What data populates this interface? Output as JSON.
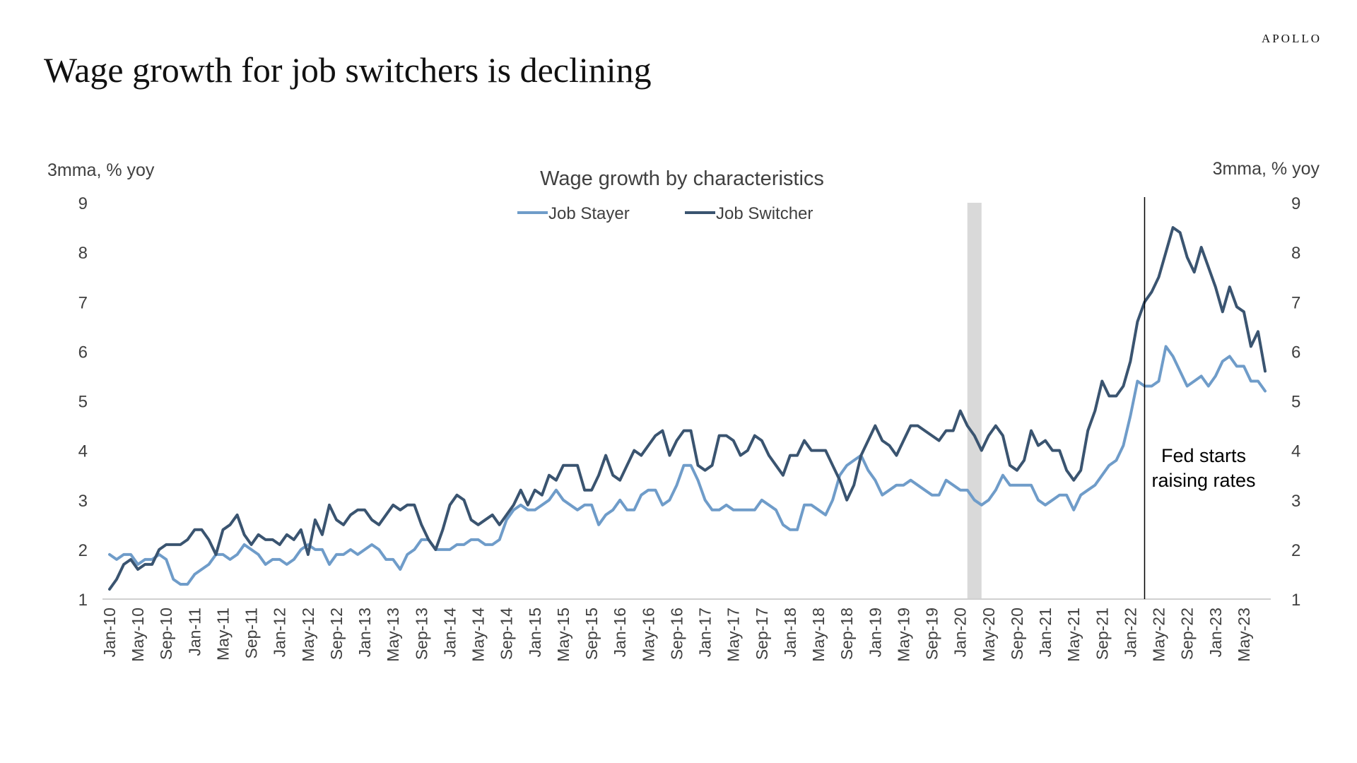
{
  "brand": "APOLLO",
  "page_title": "Wage growth for job switchers is declining",
  "colors": {
    "job_stayer": "#6f9cc9",
    "job_switcher": "#3a5470",
    "recession_band": "#d9d9d9",
    "axis": "#d0d0d0"
  },
  "chart_data": {
    "type": "line",
    "title": "Wage growth by characteristics",
    "y_unit_left": "3mma, % yoy",
    "y_unit_right": "3mma, % yoy",
    "ylim": [
      1,
      9
    ],
    "yticks": [
      "1",
      "2",
      "3",
      "4",
      "5",
      "6",
      "7",
      "8",
      "9"
    ],
    "grid": false,
    "legend_position": "top-center",
    "x_start": "Jan-10",
    "x_tick_labels": [
      "Jan-10",
      "May-10",
      "Sep-10",
      "Jan-11",
      "May-11",
      "Sep-11",
      "Jan-12",
      "May-12",
      "Sep-12",
      "Jan-13",
      "May-13",
      "Sep-13",
      "Jan-14",
      "May-14",
      "Sep-14",
      "Jan-15",
      "May-15",
      "Sep-15",
      "Jan-16",
      "May-16",
      "Sep-16",
      "Jan-17",
      "May-17",
      "Sep-17",
      "Jan-18",
      "May-18",
      "Sep-18",
      "Jan-19",
      "May-19",
      "Sep-19",
      "Jan-20",
      "May-20",
      "Sep-20",
      "Jan-21",
      "May-21",
      "Sep-21",
      "Jan-22",
      "May-22",
      "Sep-22",
      "Jan-23",
      "May-23"
    ],
    "recession_shading": {
      "start": "Feb-20",
      "end": "Apr-20"
    },
    "vertical_marker": {
      "at": "Mar-22",
      "label_lines": [
        "Fed starts",
        "raising rates"
      ]
    },
    "series": [
      {
        "name": "Job Stayer",
        "values": [
          1.9,
          1.8,
          1.9,
          1.9,
          1.7,
          1.8,
          1.8,
          1.9,
          1.8,
          1.4,
          1.3,
          1.3,
          1.5,
          1.6,
          1.7,
          1.9,
          1.9,
          1.8,
          1.9,
          2.1,
          2.0,
          1.9,
          1.7,
          1.8,
          1.8,
          1.7,
          1.8,
          2.0,
          2.1,
          2.0,
          2.0,
          1.7,
          1.9,
          1.9,
          2.0,
          1.9,
          2.0,
          2.1,
          2.0,
          1.8,
          1.8,
          1.6,
          1.9,
          2.0,
          2.2,
          2.2,
          2.0,
          2.0,
          2.0,
          2.1,
          2.1,
          2.2,
          2.2,
          2.1,
          2.1,
          2.2,
          2.6,
          2.8,
          2.9,
          2.8,
          2.8,
          2.9,
          3.0,
          3.2,
          3.0,
          2.9,
          2.8,
          2.9,
          2.9,
          2.5,
          2.7,
          2.8,
          3.0,
          2.8,
          2.8,
          3.1,
          3.2,
          3.2,
          2.9,
          3.0,
          3.3,
          3.7,
          3.7,
          3.4,
          3.0,
          2.8,
          2.8,
          2.9,
          2.8,
          2.8,
          2.8,
          2.8,
          3.0,
          2.9,
          2.8,
          2.5,
          2.4,
          2.4,
          2.9,
          2.9,
          2.8,
          2.7,
          3.0,
          3.5,
          3.7,
          3.8,
          3.9,
          3.6,
          3.4,
          3.1,
          3.2,
          3.3,
          3.3,
          3.4,
          3.3,
          3.2,
          3.1,
          3.1,
          3.4,
          3.3,
          3.2,
          3.2,
          3.0,
          2.9,
          3.0,
          3.2,
          3.5,
          3.3,
          3.3,
          3.3,
          3.3,
          3.0,
          2.9,
          3.0,
          3.1,
          3.1,
          2.8,
          3.1,
          3.2,
          3.3,
          3.5,
          3.7,
          3.8,
          4.1,
          4.7,
          5.4,
          5.3,
          5.3,
          5.4,
          6.1,
          5.9,
          5.6,
          5.3,
          5.4,
          5.5,
          5.3,
          5.5,
          5.8,
          5.9,
          5.7,
          5.7,
          5.4,
          5.4,
          5.2
        ]
      },
      {
        "name": "Job Switcher",
        "values": [
          1.2,
          1.4,
          1.7,
          1.8,
          1.6,
          1.7,
          1.7,
          2.0,
          2.1,
          2.1,
          2.1,
          2.2,
          2.4,
          2.4,
          2.2,
          1.9,
          2.4,
          2.5,
          2.7,
          2.3,
          2.1,
          2.3,
          2.2,
          2.2,
          2.1,
          2.3,
          2.2,
          2.4,
          1.9,
          2.6,
          2.3,
          2.9,
          2.6,
          2.5,
          2.7,
          2.8,
          2.8,
          2.6,
          2.5,
          2.7,
          2.9,
          2.8,
          2.9,
          2.9,
          2.5,
          2.2,
          2.0,
          2.4,
          2.9,
          3.1,
          3.0,
          2.6,
          2.5,
          2.6,
          2.7,
          2.5,
          2.7,
          2.9,
          3.2,
          2.9,
          3.2,
          3.1,
          3.5,
          3.4,
          3.7,
          3.7,
          3.7,
          3.2,
          3.2,
          3.5,
          3.9,
          3.5,
          3.4,
          3.7,
          4.0,
          3.9,
          4.1,
          4.3,
          4.4,
          3.9,
          4.2,
          4.4,
          4.4,
          3.7,
          3.6,
          3.7,
          4.3,
          4.3,
          4.2,
          3.9,
          4.0,
          4.3,
          4.2,
          3.9,
          3.7,
          3.5,
          3.9,
          3.9,
          4.2,
          4.0,
          4.0,
          4.0,
          3.7,
          3.4,
          3.0,
          3.3,
          3.9,
          4.2,
          4.5,
          4.2,
          4.1,
          3.9,
          4.2,
          4.5,
          4.5,
          4.4,
          4.3,
          4.2,
          4.4,
          4.4,
          4.8,
          4.5,
          4.3,
          4.0,
          4.3,
          4.5,
          4.3,
          3.7,
          3.6,
          3.8,
          4.4,
          4.1,
          4.2,
          4.0,
          4.0,
          3.6,
          3.4,
          3.6,
          4.4,
          4.8,
          5.4,
          5.1,
          5.1,
          5.3,
          5.8,
          6.6,
          7.0,
          7.2,
          7.5,
          8.0,
          8.5,
          8.4,
          7.9,
          7.6,
          8.1,
          7.7,
          7.3,
          6.8,
          7.3,
          6.9,
          6.8,
          6.1,
          6.4,
          5.6
        ]
      }
    ]
  }
}
